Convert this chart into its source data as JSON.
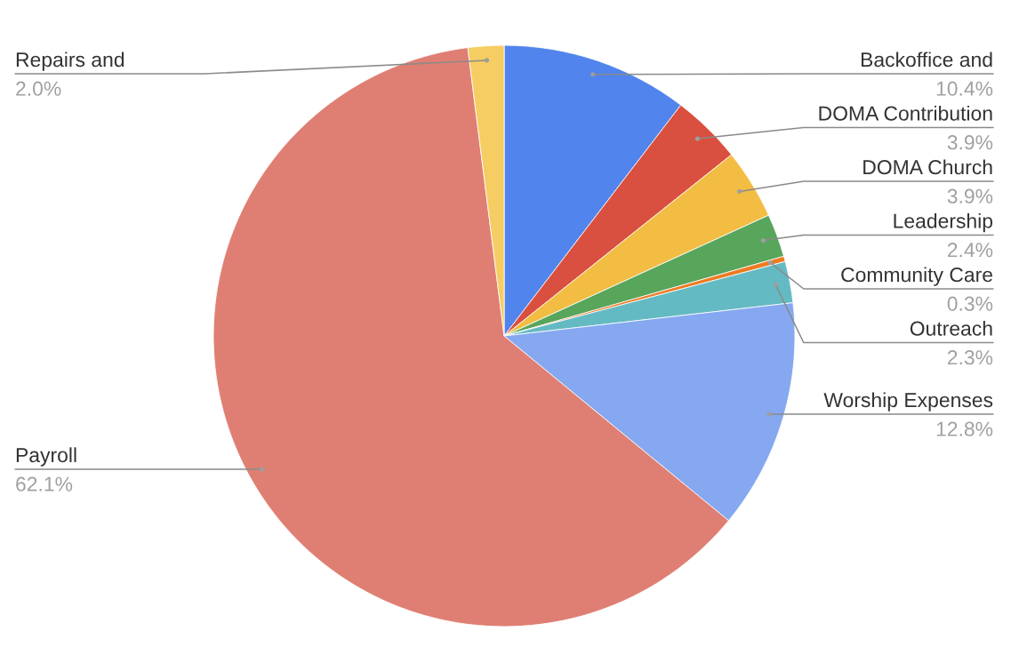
{
  "chart_data": {
    "type": "pie",
    "categories": [
      "Backoffice and",
      "DOMA Contribution",
      "DOMA Church",
      "Leadership",
      "Community Care",
      "Outreach",
      "Worship Expenses",
      "Payroll",
      "Repairs and"
    ],
    "values": [
      10.4,
      3.9,
      3.9,
      2.4,
      0.3,
      2.3,
      12.8,
      62.1,
      2.0
    ],
    "colors": [
      "#5184ec",
      "#d95040",
      "#f2bd42",
      "#58a55c",
      "#ee7a22",
      "#64bac2",
      "#85a8f0",
      "#df7f73",
      "#f5cd62"
    ],
    "value_labels": [
      "10.4%",
      "3.9%",
      "3.9%",
      "2.4%",
      "0.3%",
      "2.3%",
      "12.8%",
      "62.1%",
      "2.0%"
    ]
  }
}
